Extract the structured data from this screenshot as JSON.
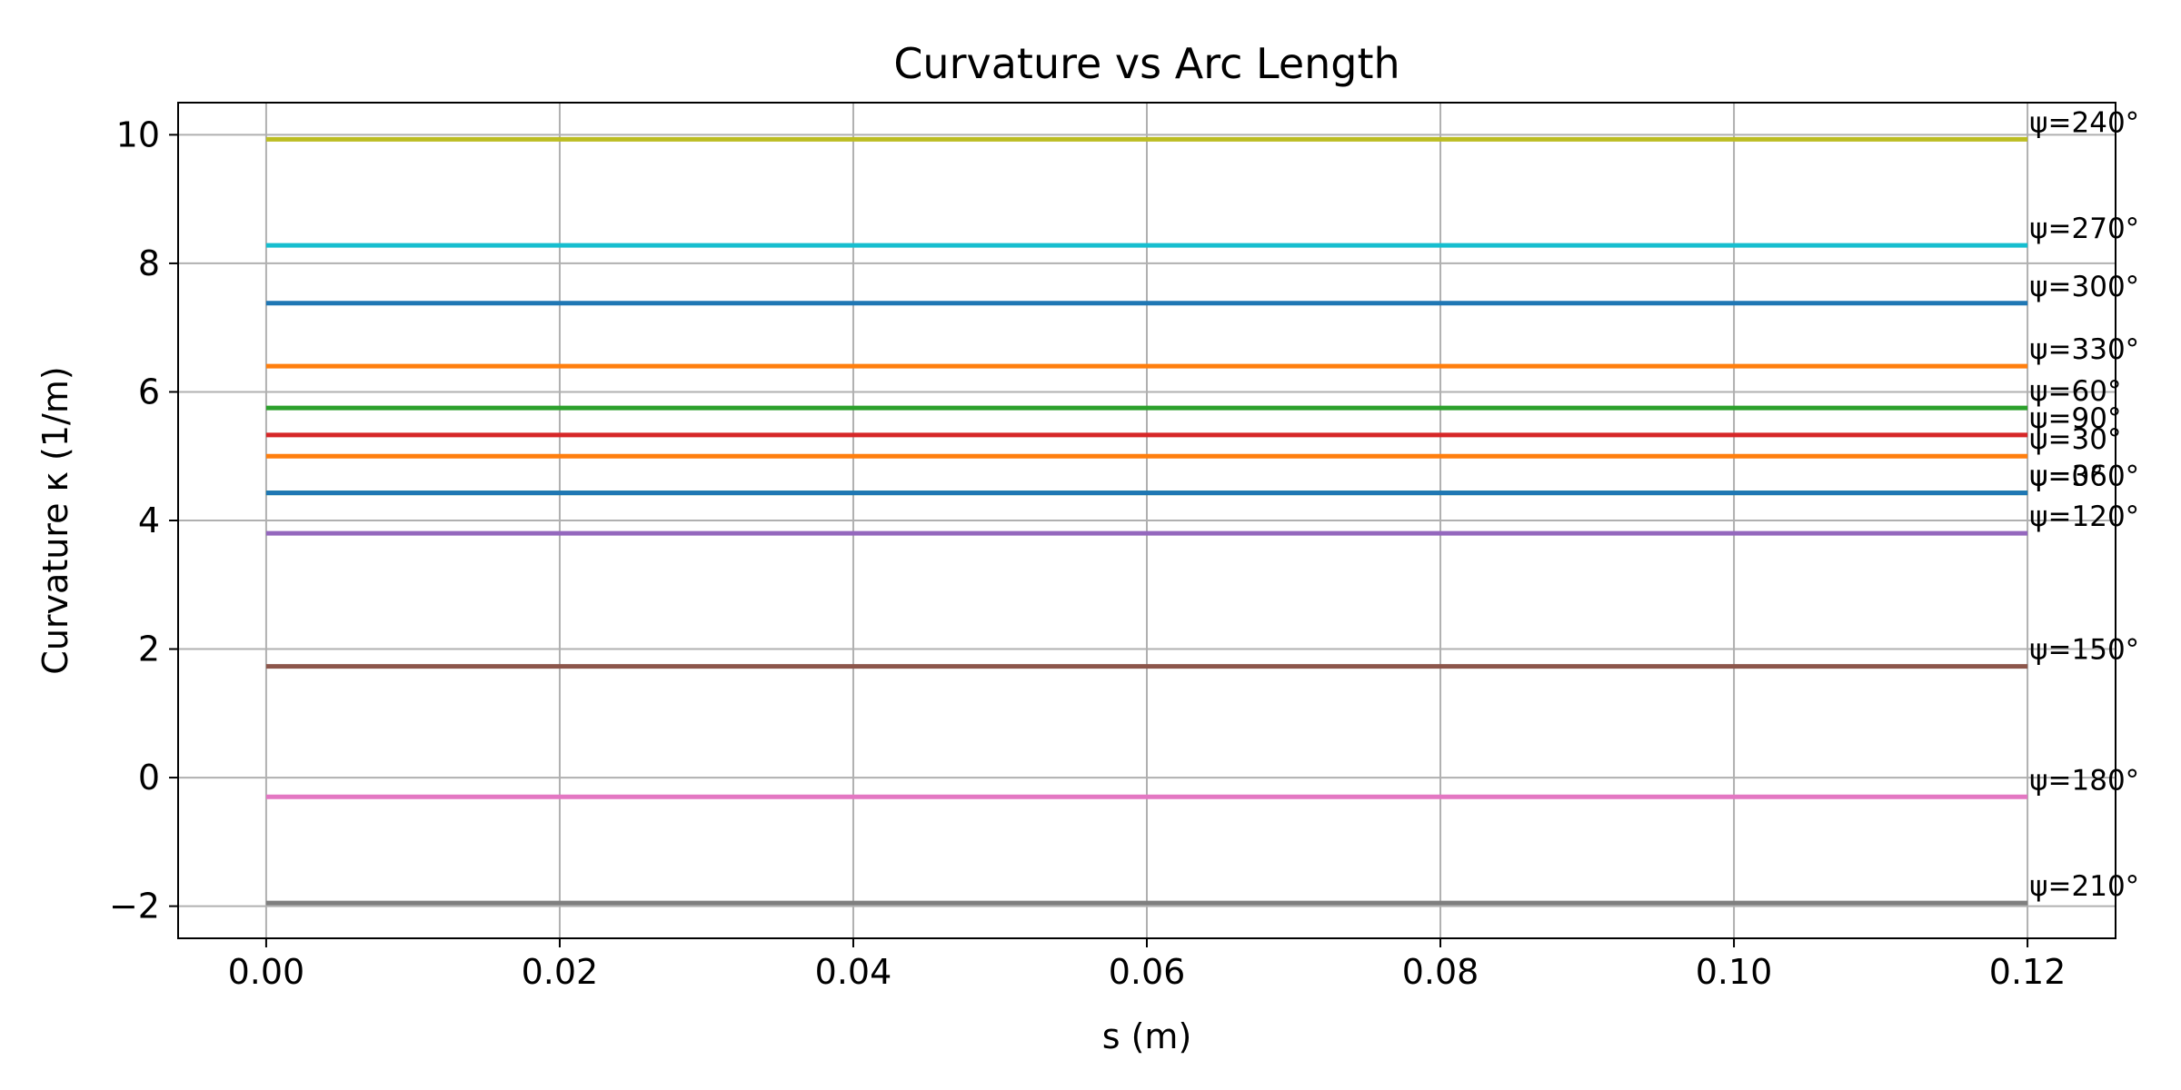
{
  "chart_data": {
    "type": "line",
    "title": "Curvature vs Arc Length",
    "xlabel": "s (m)",
    "ylabel": "Curvature κ (1/m)",
    "xlim": [
      -0.006,
      0.126
    ],
    "ylim": [
      -2.5,
      10.5
    ],
    "xticks": [
      0.0,
      0.02,
      0.04,
      0.06,
      0.08,
      0.1,
      0.12
    ],
    "xtick_labels": [
      "0.00",
      "0.02",
      "0.04",
      "0.06",
      "0.08",
      "0.10",
      "0.12"
    ],
    "yticks": [
      -2,
      0,
      2,
      4,
      6,
      8,
      10
    ],
    "ytick_labels": [
      "−2",
      "0",
      "2",
      "4",
      "6",
      "8",
      "10"
    ],
    "grid": true,
    "legend": "none",
    "x": [
      0.0,
      0.12
    ],
    "series": [
      {
        "label": "ψ=30°",
        "color": "#ff7f0e",
        "values": [
          5.0,
          5.0
        ]
      },
      {
        "label": "ψ=60°",
        "color": "#2ca02c",
        "values": [
          5.75,
          5.75
        ]
      },
      {
        "label": "ψ=90°",
        "color": "#d62728",
        "values": [
          5.33,
          5.33
        ]
      },
      {
        "label": "ψ=120°",
        "color": "#9467bd",
        "values": [
          3.8,
          3.8
        ]
      },
      {
        "label": "ψ=150°",
        "color": "#8c564b",
        "values": [
          1.73,
          1.73
        ]
      },
      {
        "label": "ψ=180°",
        "color": "#e377c2",
        "values": [
          -0.3,
          -0.3
        ]
      },
      {
        "label": "ψ=210°",
        "color": "#7f7f7f",
        "values": [
          -1.95,
          -1.95
        ]
      },
      {
        "label": "ψ=240°",
        "color": "#bcbd22",
        "values": [
          9.93,
          9.93
        ]
      },
      {
        "label": "ψ=270°",
        "color": "#17becf",
        "values": [
          8.28,
          8.28
        ]
      },
      {
        "label": "ψ=300°",
        "color": "#1f77b4",
        "values": [
          7.38,
          7.38
        ]
      },
      {
        "label": "ψ=330°",
        "color": "#ff7f0e",
        "values": [
          6.4,
          6.4
        ]
      },
      {
        "label": "ψ=360°",
        "color": "#2ca02c",
        "values": [
          4.43,
          4.43
        ]
      },
      {
        "label": "ψ=0°",
        "color": "#1f77b4",
        "values": [
          4.43,
          4.43
        ]
      }
    ]
  }
}
